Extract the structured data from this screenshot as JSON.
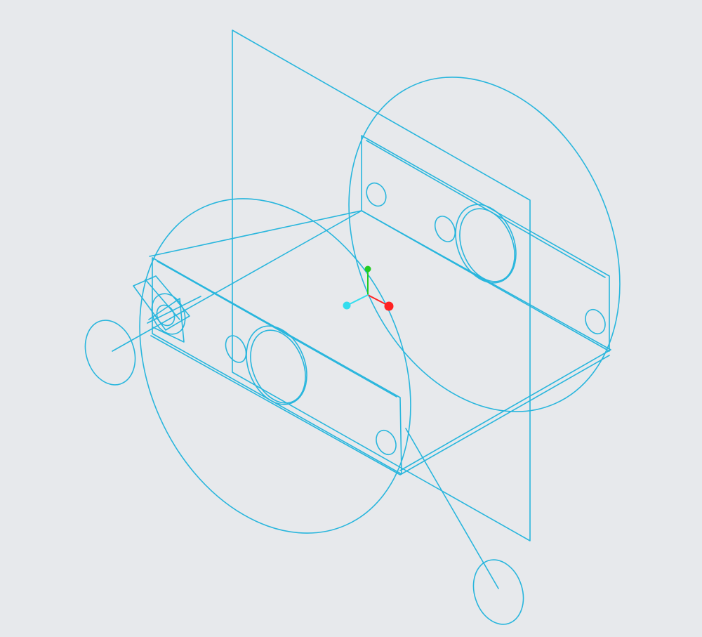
{
  "viewport": {
    "background": "#e7e9ec",
    "wire_color": "#29b6dd",
    "view_mode": "wireframe"
  },
  "triad": {
    "x_color": "#ff2222",
    "y_color": "#22cc22",
    "z_color": "#33ddee"
  },
  "icons": {
    "triad": "coordinate-triad-icon"
  }
}
